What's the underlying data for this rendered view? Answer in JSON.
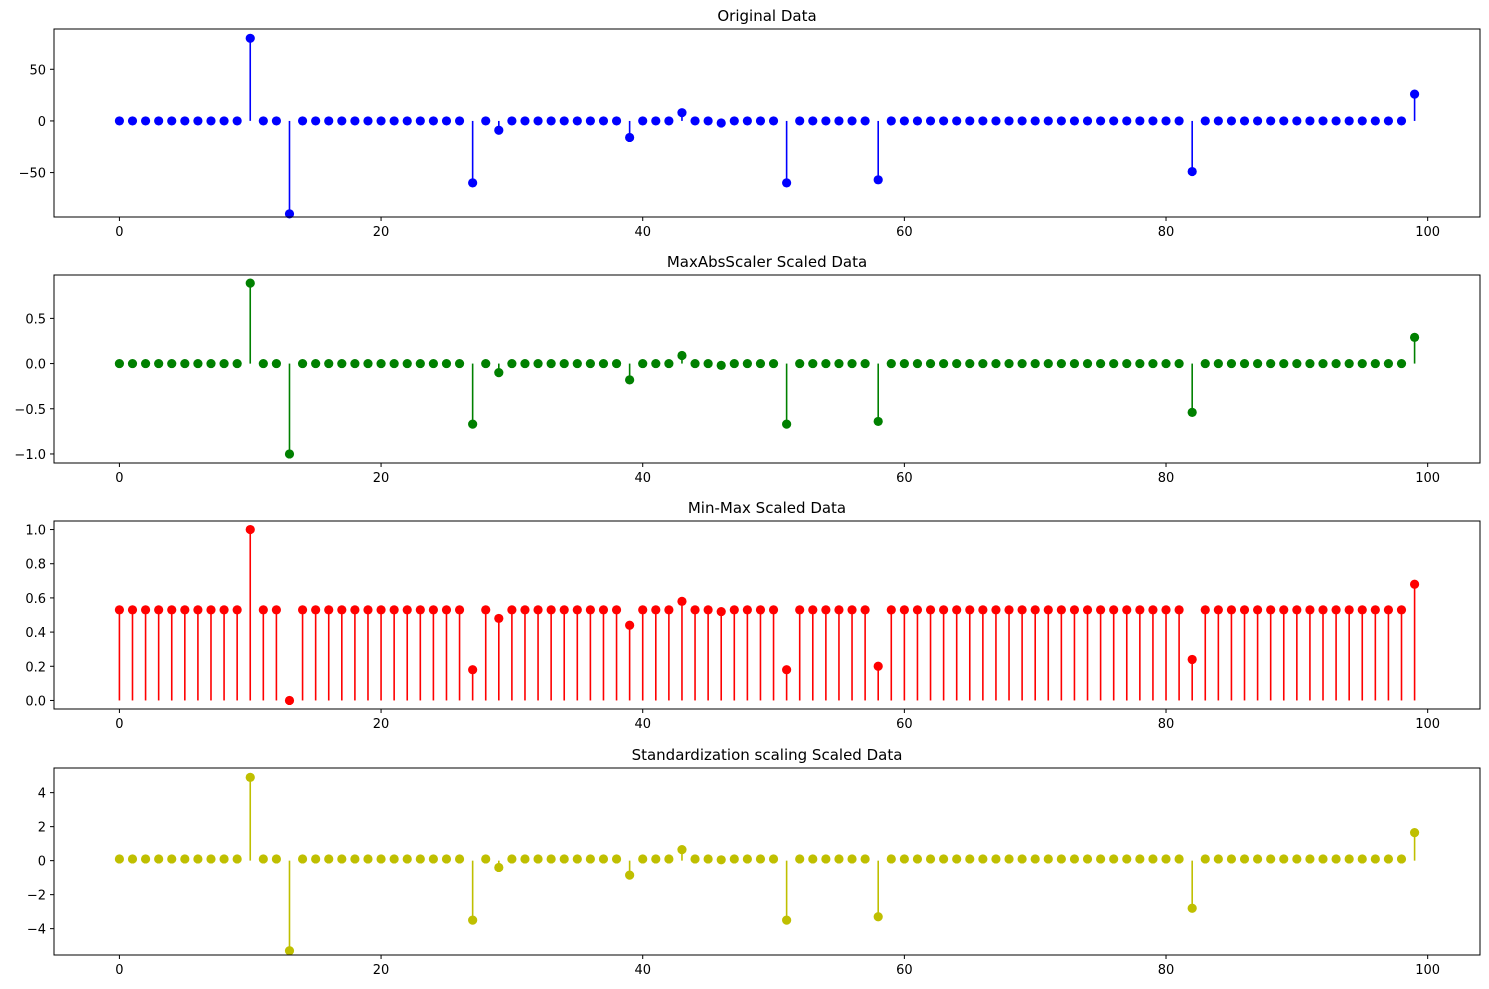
{
  "chart_data": [
    {
      "type": "stem",
      "title": "Original Data",
      "color": "#0000ff",
      "baseline": 0,
      "xlim": [
        -5,
        104
      ],
      "ylim": [
        -93,
        89
      ],
      "xticks": [
        0,
        20,
        40,
        60,
        80,
        100
      ],
      "yticks": [
        -50,
        0,
        50
      ],
      "ytick_labels": [
        "−50",
        "0",
        "50"
      ],
      "x": [
        0,
        1,
        2,
        3,
        4,
        5,
        6,
        7,
        8,
        9,
        10,
        11,
        12,
        13,
        14,
        15,
        16,
        17,
        18,
        19,
        20,
        21,
        22,
        23,
        24,
        25,
        26,
        27,
        28,
        29,
        30,
        31,
        32,
        33,
        34,
        35,
        36,
        37,
        38,
        39,
        40,
        41,
        42,
        43,
        44,
        45,
        46,
        47,
        48,
        49,
        50,
        51,
        52,
        53,
        54,
        55,
        56,
        57,
        58,
        59,
        60,
        61,
        62,
        63,
        64,
        65,
        66,
        67,
        68,
        69,
        70,
        71,
        72,
        73,
        74,
        75,
        76,
        77,
        78,
        79,
        80,
        81,
        82,
        83,
        84,
        85,
        86,
        87,
        88,
        89,
        90,
        91,
        92,
        93,
        94,
        95,
        96,
        97,
        98,
        99
      ],
      "y": [
        0,
        0,
        0,
        0,
        0,
        0,
        0,
        0,
        0,
        0,
        80,
        0,
        0,
        -90,
        0,
        0,
        0,
        0,
        0,
        0,
        0,
        0,
        0,
        0,
        0,
        0,
        0,
        -60,
        0,
        -9,
        0,
        0,
        0,
        0,
        0,
        0,
        0,
        0,
        0,
        -16,
        0,
        0,
        0,
        8,
        0,
        0,
        -2,
        0,
        0,
        0,
        0,
        -60,
        0,
        0,
        0,
        0,
        0,
        0,
        -57,
        0,
        0,
        0,
        0,
        0,
        0,
        0,
        0,
        0,
        0,
        0,
        0,
        0,
        0,
        0,
        0,
        0,
        0,
        0,
        0,
        0,
        0,
        0,
        -49,
        0,
        0,
        0,
        0,
        0,
        0,
        0,
        0,
        0,
        0,
        0,
        0,
        0,
        0,
        0,
        0,
        26
      ]
    },
    {
      "type": "stem",
      "title": "MaxAbsScaler Scaled Data",
      "color": "#008000",
      "baseline": 0,
      "xlim": [
        -5,
        104
      ],
      "ylim": [
        -1.1,
        0.98
      ],
      "xticks": [
        0,
        20,
        40,
        60,
        80,
        100
      ],
      "yticks": [
        -1.0,
        -0.5,
        0.0,
        0.5
      ],
      "ytick_labels": [
        "−1.0",
        "−0.5",
        "0.0",
        "0.5"
      ],
      "x": [
        0,
        1,
        2,
        3,
        4,
        5,
        6,
        7,
        8,
        9,
        10,
        11,
        12,
        13,
        14,
        15,
        16,
        17,
        18,
        19,
        20,
        21,
        22,
        23,
        24,
        25,
        26,
        27,
        28,
        29,
        30,
        31,
        32,
        33,
        34,
        35,
        36,
        37,
        38,
        39,
        40,
        41,
        42,
        43,
        44,
        45,
        46,
        47,
        48,
        49,
        50,
        51,
        52,
        53,
        54,
        55,
        56,
        57,
        58,
        59,
        60,
        61,
        62,
        63,
        64,
        65,
        66,
        67,
        68,
        69,
        70,
        71,
        72,
        73,
        74,
        75,
        76,
        77,
        78,
        79,
        80,
        81,
        82,
        83,
        84,
        85,
        86,
        87,
        88,
        89,
        90,
        91,
        92,
        93,
        94,
        95,
        96,
        97,
        98,
        99
      ],
      "y": [
        0,
        0,
        0,
        0,
        0,
        0,
        0,
        0,
        0,
        0,
        0.89,
        0,
        0,
        -1.0,
        0,
        0,
        0,
        0,
        0,
        0,
        0,
        0,
        0,
        0,
        0,
        0,
        0,
        -0.67,
        0,
        -0.1,
        0,
        0,
        0,
        0,
        0,
        0,
        0,
        0,
        0,
        -0.18,
        0,
        0,
        0,
        0.09,
        0,
        0,
        -0.02,
        0,
        0,
        0,
        0,
        -0.67,
        0,
        0,
        0,
        0,
        0,
        0,
        -0.64,
        0,
        0,
        0,
        0,
        0,
        0,
        0,
        0,
        0,
        0,
        0,
        0,
        0,
        0,
        0,
        0,
        0,
        0,
        0,
        0,
        0,
        0,
        0,
        -0.54,
        0,
        0,
        0,
        0,
        0,
        0,
        0,
        0,
        0,
        0,
        0,
        0,
        0,
        0,
        0,
        0,
        0.29
      ]
    },
    {
      "type": "stem",
      "title": "Min-Max Scaled Data",
      "color": "#ff0000",
      "baseline": 0,
      "xlim": [
        -5,
        104
      ],
      "ylim": [
        -0.05,
        1.05
      ],
      "xticks": [
        0,
        20,
        40,
        60,
        80,
        100
      ],
      "yticks": [
        0.0,
        0.2,
        0.4,
        0.6,
        0.8,
        1.0
      ],
      "ytick_labels": [
        "0.0",
        "0.2",
        "0.4",
        "0.6",
        "0.8",
        "1.0"
      ],
      "x": [
        0,
        1,
        2,
        3,
        4,
        5,
        6,
        7,
        8,
        9,
        10,
        11,
        12,
        13,
        14,
        15,
        16,
        17,
        18,
        19,
        20,
        21,
        22,
        23,
        24,
        25,
        26,
        27,
        28,
        29,
        30,
        31,
        32,
        33,
        34,
        35,
        36,
        37,
        38,
        39,
        40,
        41,
        42,
        43,
        44,
        45,
        46,
        47,
        48,
        49,
        50,
        51,
        52,
        53,
        54,
        55,
        56,
        57,
        58,
        59,
        60,
        61,
        62,
        63,
        64,
        65,
        66,
        67,
        68,
        69,
        70,
        71,
        72,
        73,
        74,
        75,
        76,
        77,
        78,
        79,
        80,
        81,
        82,
        83,
        84,
        85,
        86,
        87,
        88,
        89,
        90,
        91,
        92,
        93,
        94,
        95,
        96,
        97,
        98,
        99
      ],
      "y": [
        0.53,
        0.53,
        0.53,
        0.53,
        0.53,
        0.53,
        0.53,
        0.53,
        0.53,
        0.53,
        1.0,
        0.53,
        0.53,
        0.0,
        0.53,
        0.53,
        0.53,
        0.53,
        0.53,
        0.53,
        0.53,
        0.53,
        0.53,
        0.53,
        0.53,
        0.53,
        0.53,
        0.18,
        0.53,
        0.48,
        0.53,
        0.53,
        0.53,
        0.53,
        0.53,
        0.53,
        0.53,
        0.53,
        0.53,
        0.44,
        0.53,
        0.53,
        0.53,
        0.58,
        0.53,
        0.53,
        0.52,
        0.53,
        0.53,
        0.53,
        0.53,
        0.18,
        0.53,
        0.53,
        0.53,
        0.53,
        0.53,
        0.53,
        0.2,
        0.53,
        0.53,
        0.53,
        0.53,
        0.53,
        0.53,
        0.53,
        0.53,
        0.53,
        0.53,
        0.53,
        0.53,
        0.53,
        0.53,
        0.53,
        0.53,
        0.53,
        0.53,
        0.53,
        0.53,
        0.53,
        0.53,
        0.53,
        0.24,
        0.53,
        0.53,
        0.53,
        0.53,
        0.53,
        0.53,
        0.53,
        0.53,
        0.53,
        0.53,
        0.53,
        0.53,
        0.53,
        0.53,
        0.53,
        0.53,
        0.68
      ]
    },
    {
      "type": "stem",
      "title": "Standardization scaling  Scaled Data",
      "color": "#bfbf00",
      "baseline": 0,
      "xlim": [
        -5,
        104
      ],
      "ylim": [
        -5.55,
        5.45
      ],
      "xticks": [
        0,
        20,
        40,
        60,
        80,
        100
      ],
      "yticks": [
        -4,
        -2,
        0,
        2,
        4
      ],
      "ytick_labels": [
        "−4",
        "−2",
        "0",
        "2",
        "4"
      ],
      "x": [
        0,
        1,
        2,
        3,
        4,
        5,
        6,
        7,
        8,
        9,
        10,
        11,
        12,
        13,
        14,
        15,
        16,
        17,
        18,
        19,
        20,
        21,
        22,
        23,
        24,
        25,
        26,
        27,
        28,
        29,
        30,
        31,
        32,
        33,
        34,
        35,
        36,
        37,
        38,
        39,
        40,
        41,
        42,
        43,
        44,
        45,
        46,
        47,
        48,
        49,
        50,
        51,
        52,
        53,
        54,
        55,
        56,
        57,
        58,
        59,
        60,
        61,
        62,
        63,
        64,
        65,
        66,
        67,
        68,
        69,
        70,
        71,
        72,
        73,
        74,
        75,
        76,
        77,
        78,
        79,
        80,
        81,
        82,
        83,
        84,
        85,
        86,
        87,
        88,
        89,
        90,
        91,
        92,
        93,
        94,
        95,
        96,
        97,
        98,
        99
      ],
      "y": [
        0.1,
        0.1,
        0.1,
        0.1,
        0.1,
        0.1,
        0.1,
        0.1,
        0.1,
        0.1,
        4.9,
        0.1,
        0.1,
        -5.3,
        0.1,
        0.1,
        0.1,
        0.1,
        0.1,
        0.1,
        0.1,
        0.1,
        0.1,
        0.1,
        0.1,
        0.1,
        0.1,
        -3.5,
        0.1,
        -0.4,
        0.1,
        0.1,
        0.1,
        0.1,
        0.1,
        0.1,
        0.1,
        0.1,
        0.1,
        -0.85,
        0.1,
        0.1,
        0.1,
        0.65,
        0.1,
        0.1,
        0.05,
        0.1,
        0.1,
        0.1,
        0.1,
        -3.5,
        0.1,
        0.1,
        0.1,
        0.1,
        0.1,
        0.1,
        -3.3,
        0.1,
        0.1,
        0.1,
        0.1,
        0.1,
        0.1,
        0.1,
        0.1,
        0.1,
        0.1,
        0.1,
        0.1,
        0.1,
        0.1,
        0.1,
        0.1,
        0.1,
        0.1,
        0.1,
        0.1,
        0.1,
        0.1,
        0.1,
        -2.8,
        0.1,
        0.1,
        0.1,
        0.1,
        0.1,
        0.1,
        0.1,
        0.1,
        0.1,
        0.1,
        0.1,
        0.1,
        0.1,
        0.1,
        0.1,
        0.1,
        1.65
      ]
    }
  ]
}
